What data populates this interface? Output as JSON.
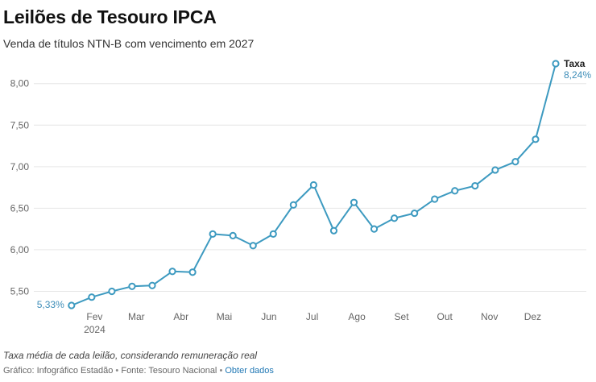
{
  "header": {
    "title": "Leilões de Tesouro IPCA",
    "subtitle": "Venda de títulos NTN-B com vencimento em 2027"
  },
  "footer": {
    "note": "Taxa média de cada leilão, considerando remuneração real",
    "credit_prefix": "Gráfico: Infográfico Estadão",
    "sep": "•",
    "source": "Fonte: Tesouro Nacional",
    "link": "Obter dados"
  },
  "colors": {
    "line": "#3d9ac0",
    "grid": "#e6e6e6",
    "label": "#3d8db8"
  },
  "chart_data": {
    "type": "line",
    "title": "Leilões de Tesouro IPCA",
    "subtitle": "Venda de títulos NTN-B com vencimento em 2027",
    "ylim": [
      5.33,
      8.24
    ],
    "yticks": [
      5.5,
      6.0,
      6.5,
      7.0,
      7.5,
      8.0
    ],
    "ytick_labels": [
      "5,50",
      "6,00",
      "6,50",
      "7,00",
      "7,50",
      "8,00"
    ],
    "xrange": [
      "2024-01-15",
      "2024-12-17"
    ],
    "xticks": [
      {
        "date": "2024-02-01",
        "label": "Fev",
        "sublabel": "2024"
      },
      {
        "date": "2024-03-01",
        "label": "Mar"
      },
      {
        "date": "2024-04-01",
        "label": "Abr"
      },
      {
        "date": "2024-05-01",
        "label": "Mai"
      },
      {
        "date": "2024-06-01",
        "label": "Jun"
      },
      {
        "date": "2024-07-01",
        "label": "Jul"
      },
      {
        "date": "2024-08-01",
        "label": "Ago"
      },
      {
        "date": "2024-09-01",
        "label": "Set"
      },
      {
        "date": "2024-10-01",
        "label": "Out"
      },
      {
        "date": "2024-11-01",
        "label": "Nov"
      },
      {
        "date": "2024-12-01",
        "label": "Dez"
      }
    ],
    "grid": true,
    "series": [
      {
        "name": "Taxa",
        "points": [
          {
            "date": "2024-01-16",
            "value": 5.33
          },
          {
            "date": "2024-01-30",
            "value": 5.43
          },
          {
            "date": "2024-02-13",
            "value": 5.5
          },
          {
            "date": "2024-02-27",
            "value": 5.56
          },
          {
            "date": "2024-03-12",
            "value": 5.57
          },
          {
            "date": "2024-03-26",
            "value": 5.74
          },
          {
            "date": "2024-04-09",
            "value": 5.73
          },
          {
            "date": "2024-04-23",
            "value": 6.19
          },
          {
            "date": "2024-05-07",
            "value": 6.17
          },
          {
            "date": "2024-05-21",
            "value": 6.05
          },
          {
            "date": "2024-06-04",
            "value": 6.19
          },
          {
            "date": "2024-06-18",
            "value": 6.54
          },
          {
            "date": "2024-07-02",
            "value": 6.78
          },
          {
            "date": "2024-07-16",
            "value": 6.23
          },
          {
            "date": "2024-07-30",
            "value": 6.57
          },
          {
            "date": "2024-08-13",
            "value": 6.25
          },
          {
            "date": "2024-08-27",
            "value": 6.38
          },
          {
            "date": "2024-09-10",
            "value": 6.44
          },
          {
            "date": "2024-09-24",
            "value": 6.61
          },
          {
            "date": "2024-10-08",
            "value": 6.71
          },
          {
            "date": "2024-10-22",
            "value": 6.77
          },
          {
            "date": "2024-11-05",
            "value": 6.96
          },
          {
            "date": "2024-11-19",
            "value": 7.06
          },
          {
            "date": "2024-12-03",
            "value": 7.33
          },
          {
            "date": "2024-12-17",
            "value": 8.24
          }
        ],
        "first_label": "5,33%",
        "last_label": "8,24%",
        "series_label": "Taxa"
      }
    ]
  }
}
